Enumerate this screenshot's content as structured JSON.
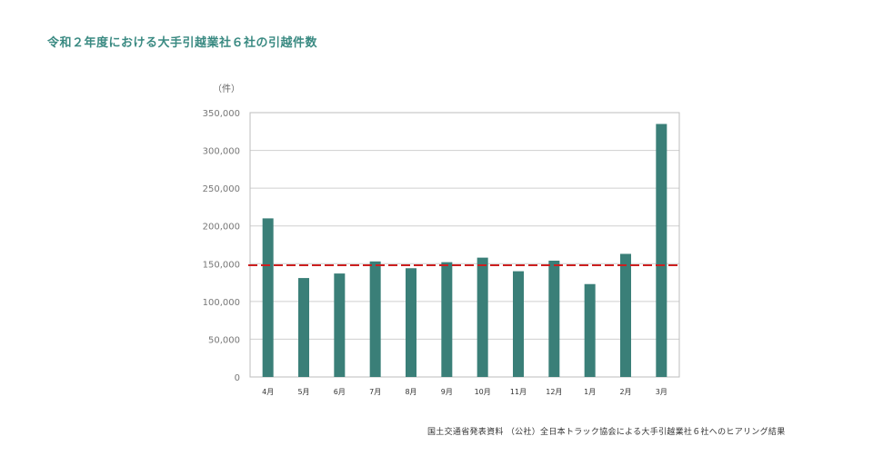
{
  "title": "令和２年度における大手引越業社６社の引越件数",
  "source": "国土交通省発表資料 （公社）全日本トラック協会による大手引越業社６社へのヒアリング結果",
  "colors": {
    "bar": "#3a7f78",
    "average_line": "#cc1f1f",
    "grid": "#cfcfcf",
    "title": "#3a8a82"
  },
  "chart_data": {
    "type": "bar",
    "unit_label": "（件）",
    "categories": [
      "4月",
      "5月",
      "6月",
      "7月",
      "8月",
      "9月",
      "10月",
      "11月",
      "12月",
      "1月",
      "2月",
      "3月"
    ],
    "values": [
      210000,
      131000,
      137000,
      153000,
      144000,
      152000,
      158000,
      140000,
      154000,
      123000,
      163000,
      335000
    ],
    "ylim": [
      0,
      350000
    ],
    "yticks": [
      "0",
      "50,000",
      "100,000",
      "150,000",
      "200,000",
      "250,000",
      "300,000",
      "350,000"
    ],
    "ytick_values": [
      0,
      50000,
      100000,
      150000,
      200000,
      250000,
      300000,
      350000
    ],
    "reference_line": {
      "value": 148000,
      "style": "dashed"
    },
    "grid": true
  }
}
